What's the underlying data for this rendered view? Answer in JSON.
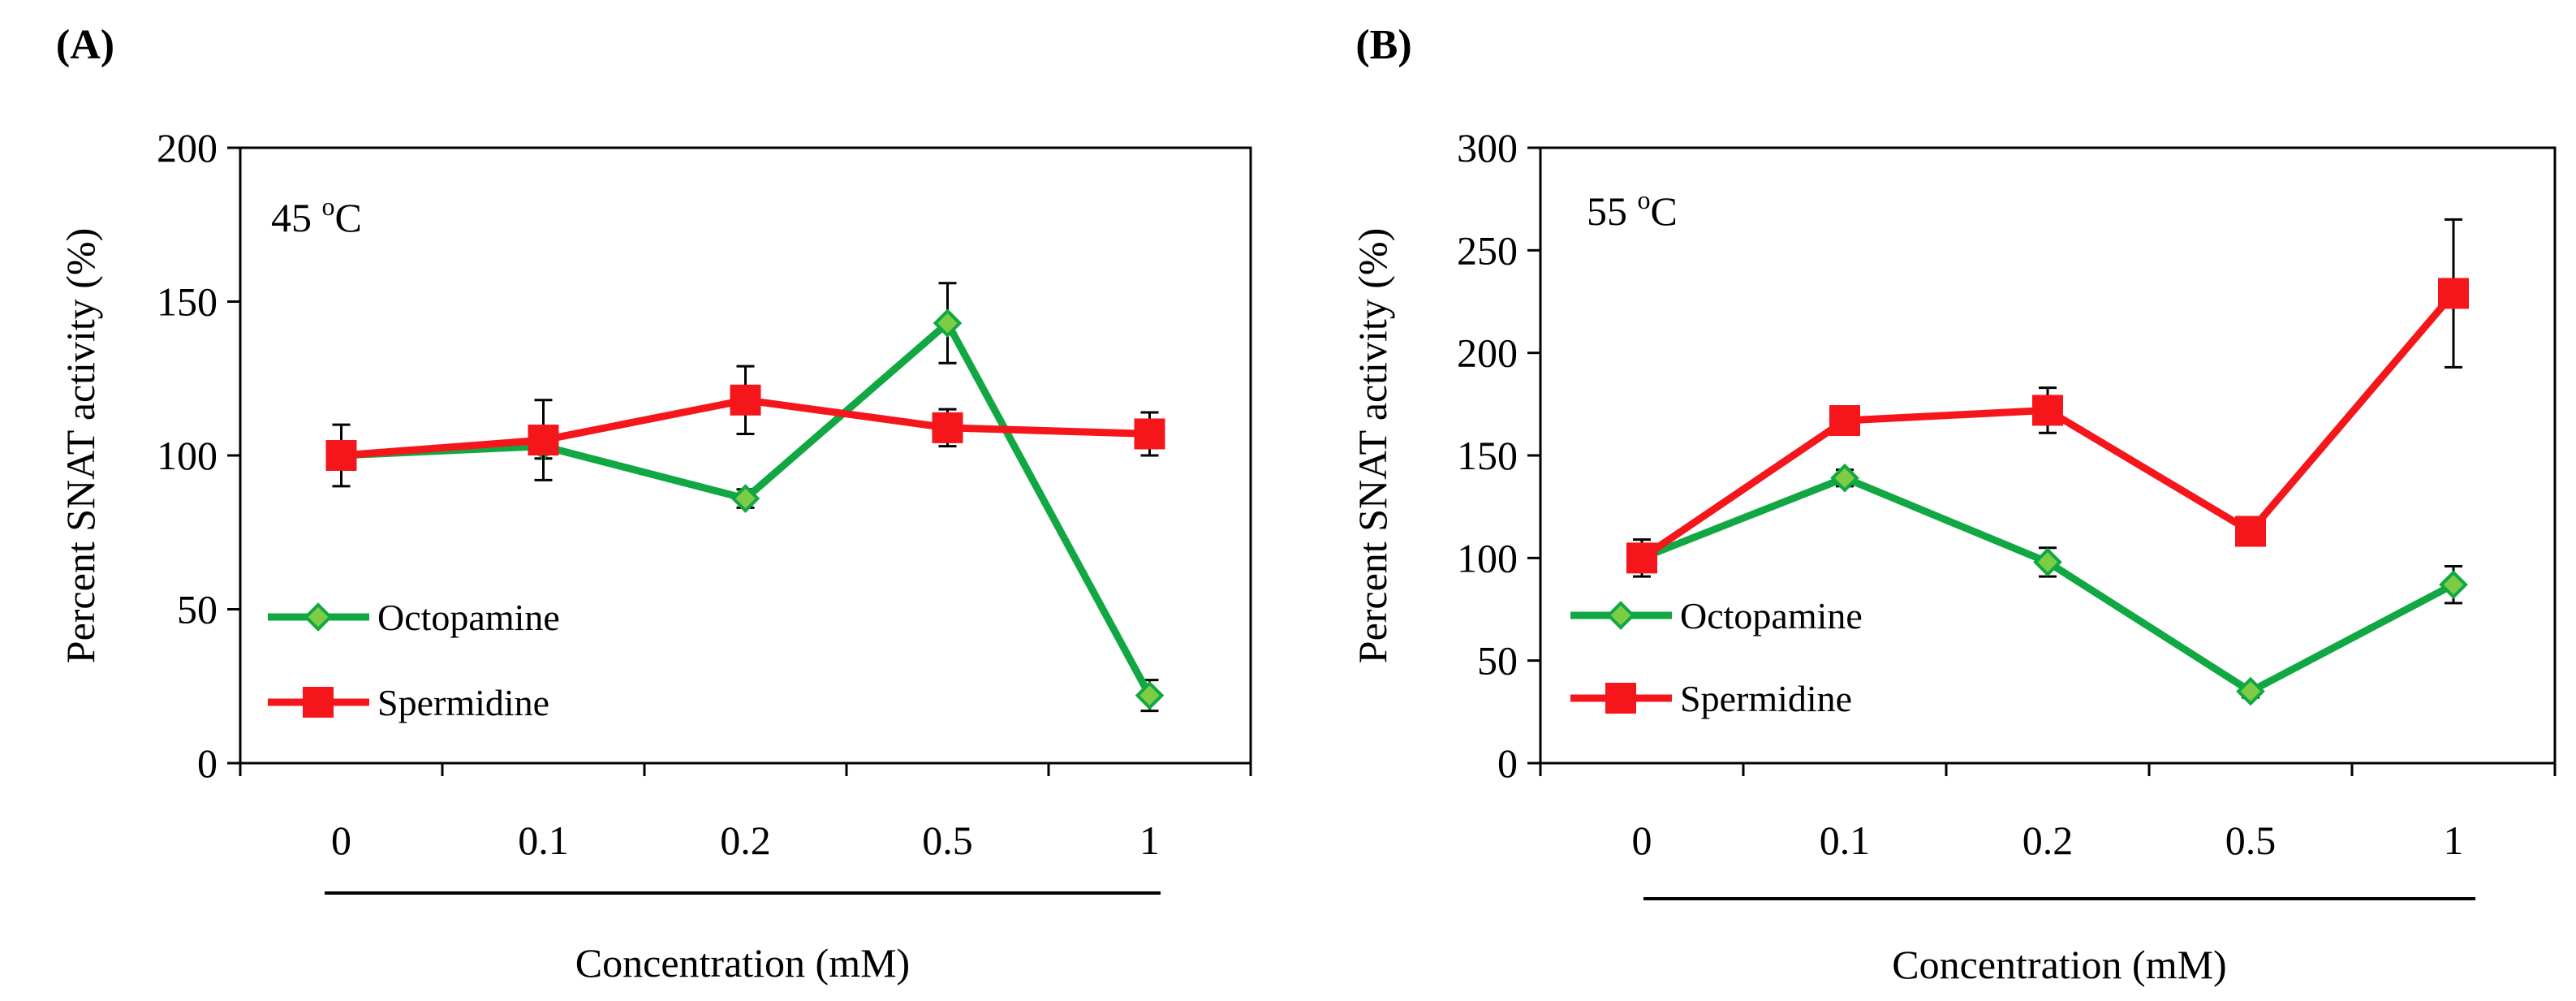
{
  "chart_data": [
    {
      "type": "line",
      "panel_label": "(A)",
      "annotation": {
        "value": "45",
        "superscript": "o",
        "unit": "C"
      },
      "xlabel": "Concentration (mM)",
      "ylabel": "Percent SNAT activity (%)",
      "categories": [
        "0",
        "0.1",
        "0.2",
        "0.5",
        "1"
      ],
      "ylim": [
        0,
        200
      ],
      "yticks": [
        0,
        50,
        100,
        150,
        200
      ],
      "yticks_text": [
        "0",
        "50",
        "100",
        "150",
        "200"
      ],
      "grid": false,
      "legend_position": "bottom-left",
      "series": [
        {
          "name": "Octopamine",
          "marker": "diamond",
          "color": "#11a844",
          "marker_fill": "#7dcc45",
          "values": [
            100,
            103,
            86,
            143,
            22
          ],
          "errors": [
            0,
            4,
            3,
            13,
            5
          ]
        },
        {
          "name": "Spermidine",
          "marker": "square",
          "color": "#f5161c",
          "marker_fill": "#f5161c",
          "values": [
            100,
            105,
            118,
            109,
            107
          ],
          "errors": [
            10,
            13,
            11,
            6,
            7
          ]
        }
      ]
    },
    {
      "type": "line",
      "panel_label": "(B)",
      "annotation": {
        "value": "55",
        "superscript": "o",
        "unit": "C"
      },
      "xlabel": "Concentration (mM)",
      "ylabel": "Percent SNAT activity (%)",
      "categories": [
        "0",
        "0.1",
        "0.2",
        "0.5",
        "1"
      ],
      "ylim": [
        0,
        300
      ],
      "yticks": [
        0,
        50,
        100,
        150,
        200,
        250,
        300
      ],
      "yticks_text": [
        "0",
        "50",
        "100",
        "150",
        "200",
        "250",
        "300"
      ],
      "grid": false,
      "legend_position": "bottom-left",
      "series": [
        {
          "name": "Octopamine",
          "marker": "diamond",
          "color": "#11a844",
          "marker_fill": "#7dcc45",
          "values": [
            100,
            139,
            98,
            35,
            87
          ],
          "errors": [
            0,
            4,
            7,
            3,
            9
          ]
        },
        {
          "name": "Spermidine",
          "marker": "square",
          "color": "#f5161c",
          "marker_fill": "#f5161c",
          "values": [
            100,
            167,
            172,
            113,
            229
          ],
          "errors": [
            9,
            6,
            11,
            5,
            36
          ]
        }
      ]
    }
  ]
}
